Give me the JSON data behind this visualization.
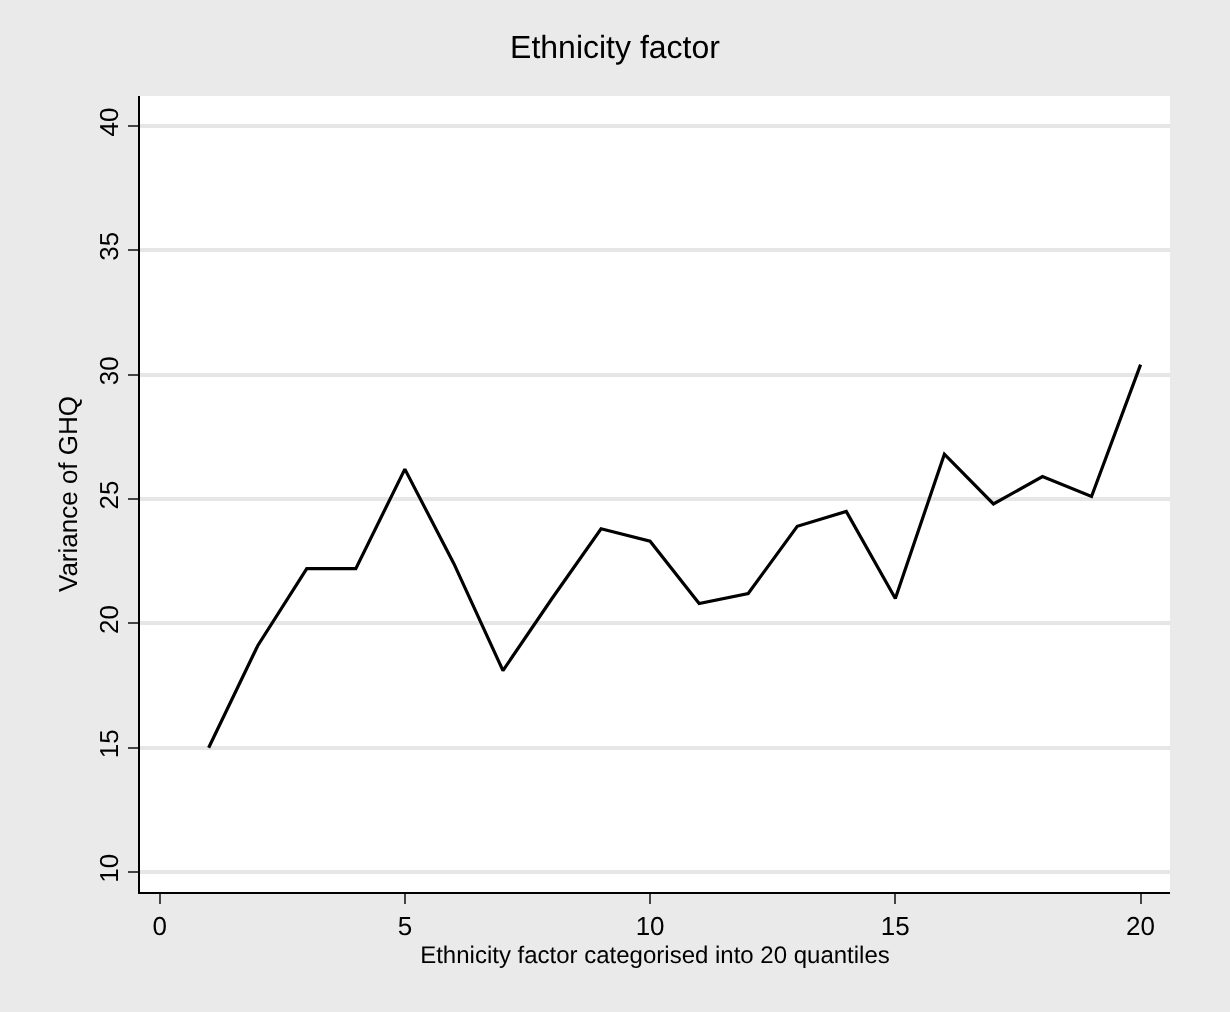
{
  "chart_data": {
    "type": "line",
    "title": "Ethnicity factor",
    "xlabel": "Ethnicity factor categorised into 20 quantiles",
    "ylabel": "Variance of GHQ",
    "x": [
      1,
      2,
      3,
      4,
      5,
      6,
      7,
      8,
      9,
      10,
      11,
      12,
      13,
      14,
      15,
      16,
      17,
      18,
      19,
      20
    ],
    "series": [
      {
        "color": "#000000",
        "values": [
          15.0,
          19.1,
          22.2,
          22.2,
          26.2,
          22.4,
          18.1,
          21.0,
          23.8,
          23.3,
          20.8,
          21.2,
          23.9,
          24.5,
          21.0,
          26.8,
          24.8,
          25.9,
          25.1,
          30.4
        ]
      }
    ],
    "xlim": [
      -0.4,
      20.6
    ],
    "xticks": [
      0,
      5,
      10,
      15,
      20
    ],
    "ylim": [
      9.2,
      41.2
    ],
    "yticks": [
      10,
      15,
      20,
      25,
      30,
      35,
      40
    ],
    "grid": "y",
    "marker": "none",
    "line_style": "solid"
  }
}
